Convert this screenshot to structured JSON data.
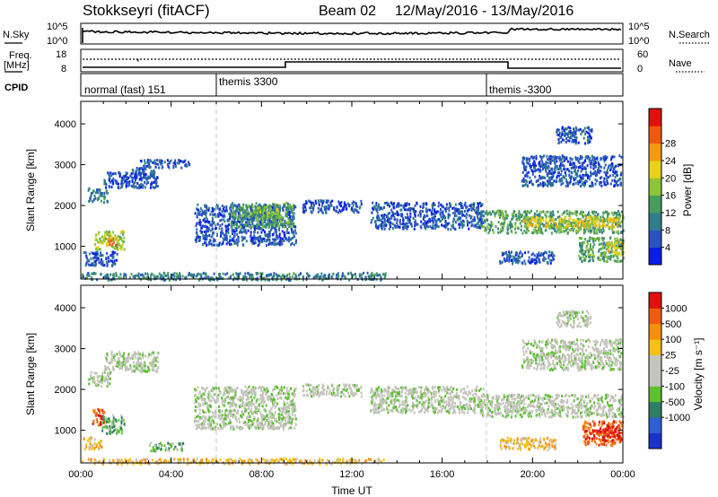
{
  "header": {
    "title": "Stokkseyri (fitACF)",
    "beam_label": "Beam 02",
    "date_range": "12/May/2016 - 13/May/2016"
  },
  "summary_panels": {
    "nsky": {
      "label": "N.Sky",
      "tick_top": "10^5",
      "tick_bottom": "10^0"
    },
    "nsearch": {
      "label": "N.Search",
      "tick_top": "10^5",
      "tick_bottom": "10^0"
    },
    "freq": {
      "label_line1": "Freq.",
      "label_line2": "[MHz]",
      "tick_top": "18",
      "tick_bottom": "8"
    },
    "nave": {
      "label": "Nave",
      "tick_top": "60",
      "tick_bottom": "0"
    },
    "cpid": {
      "label": "CPID",
      "segments": [
        {
          "name": "normal (fast) 151",
          "start_hour": 0
        },
        {
          "name": "themis 3300",
          "start_hour": 6
        },
        {
          "name": "themis -3300",
          "start_hour": 18
        }
      ]
    }
  },
  "chart_data": [
    {
      "type": "heatmap",
      "panel": "power",
      "ylabel": "Slant Range [km]",
      "ylim": [
        200,
        4550
      ],
      "yticks": [
        1000,
        2000,
        3000,
        4000
      ],
      "xlim_hours": [
        0,
        24
      ],
      "colorbar": {
        "label": "Power [dB]",
        "ticks": [
          "4",
          "8",
          "12",
          "16",
          "20",
          "24",
          "28"
        ],
        "colors": [
          "#0a1fe6",
          "#2a55c0",
          "#2f7e8a",
          "#4a9c5c",
          "#8cc43a",
          "#e8d21a",
          "#f29a12",
          "#ef5a10",
          "#e0100e"
        ]
      },
      "regions": [
        {
          "x0": 0.3,
          "x1": 1.2,
          "y0": 2100,
          "y1": 2450,
          "level": 2
        },
        {
          "x0": 1.0,
          "x1": 3.4,
          "y0": 2450,
          "y1": 2850,
          "level": 1
        },
        {
          "x0": 2.2,
          "x1": 3.3,
          "y0": 2650,
          "y1": 2950,
          "level": 1
        },
        {
          "x0": 0.6,
          "x1": 1.9,
          "y0": 950,
          "y1": 1400,
          "level": 4
        },
        {
          "x0": 1.1,
          "x1": 1.6,
          "y0": 1050,
          "y1": 1250,
          "level": 6
        },
        {
          "x0": 0.1,
          "x1": 1.6,
          "y0": 550,
          "y1": 900,
          "level": 1
        },
        {
          "x0": 0.0,
          "x1": 13.5,
          "y0": 200,
          "y1": 380,
          "level": 2
        },
        {
          "x0": 5.0,
          "x1": 9.5,
          "y0": 1050,
          "y1": 2050,
          "level": 1
        },
        {
          "x0": 6.6,
          "x1": 9.4,
          "y0": 1500,
          "y1": 2100,
          "level": 3
        },
        {
          "x0": 7.7,
          "x1": 8.8,
          "y0": 1700,
          "y1": 2000,
          "level": 4
        },
        {
          "x0": 9.8,
          "x1": 12.4,
          "y0": 1850,
          "y1": 2150,
          "level": 1
        },
        {
          "x0": 12.8,
          "x1": 17.8,
          "y0": 1450,
          "y1": 2100,
          "level": 1
        },
        {
          "x0": 17.7,
          "x1": 24.0,
          "y0": 1350,
          "y1": 1900,
          "level": 3
        },
        {
          "x0": 19.5,
          "x1": 23.8,
          "y0": 1500,
          "y1": 1750,
          "level": 5
        },
        {
          "x0": 19.5,
          "x1": 23.9,
          "y0": 2500,
          "y1": 3250,
          "level": 1
        },
        {
          "x0": 21.0,
          "x1": 22.6,
          "y0": 3550,
          "y1": 3950,
          "level": 1
        },
        {
          "x0": 22.0,
          "x1": 24.0,
          "y0": 650,
          "y1": 1250,
          "level": 3
        },
        {
          "x0": 23.2,
          "x1": 24.0,
          "y0": 800,
          "y1": 1150,
          "level": 5
        },
        {
          "x0": 18.5,
          "x1": 21.0,
          "y0": 600,
          "y1": 900,
          "level": 1
        },
        {
          "x0": 2.6,
          "x1": 4.8,
          "y0": 2950,
          "y1": 3150,
          "level": 1
        }
      ]
    },
    {
      "type": "heatmap",
      "panel": "velocity",
      "ylabel": "Slant Range [km]",
      "ylim": [
        200,
        4550
      ],
      "yticks": [
        1000,
        2000,
        3000,
        4000
      ],
      "xlim_hours": [
        0,
        24
      ],
      "xlabel": "Time UT",
      "xticks": [
        "00:00",
        "04:00",
        "08:00",
        "12:00",
        "16:00",
        "20:00",
        "00:00"
      ],
      "colorbar": {
        "label": "Velocity [m s⁻¹]",
        "ticks": [
          "1000",
          "500",
          "100",
          "25",
          "-25",
          "-100",
          "-500",
          "-1000"
        ],
        "colors": [
          "#1a32c8",
          "#2f5fd0",
          "#2e7e66",
          "#5cc030",
          "#c4c4bc",
          "#c4c4bc",
          "#f7c018",
          "#f39010",
          "#ef5c10",
          "#e0100e"
        ]
      },
      "regions": [
        {
          "x0": 0.3,
          "x1": 1.3,
          "y0": 2100,
          "y1": 2450,
          "level": 4
        },
        {
          "x0": 1.0,
          "x1": 3.4,
          "y0": 2450,
          "y1": 2950,
          "level": 4
        },
        {
          "x0": 0.5,
          "x1": 1.0,
          "y0": 1150,
          "y1": 1550,
          "level": 8
        },
        {
          "x0": 0.9,
          "x1": 1.9,
          "y0": 950,
          "y1": 1400,
          "level": 3
        },
        {
          "x0": 0.1,
          "x1": 0.9,
          "y0": 550,
          "y1": 850,
          "level": 6
        },
        {
          "x0": 3.0,
          "x1": 4.5,
          "y0": 520,
          "y1": 720,
          "level": 3
        },
        {
          "x0": 0.0,
          "x1": 13.5,
          "y0": 200,
          "y1": 330,
          "level": 6
        },
        {
          "x0": 5.0,
          "x1": 9.5,
          "y0": 1050,
          "y1": 2100,
          "level": 4
        },
        {
          "x0": 9.8,
          "x1": 12.4,
          "y0": 1850,
          "y1": 2150,
          "level": 4
        },
        {
          "x0": 12.8,
          "x1": 17.8,
          "y0": 1450,
          "y1": 2100,
          "level": 4
        },
        {
          "x0": 17.7,
          "x1": 24.0,
          "y0": 1350,
          "y1": 1900,
          "level": 4
        },
        {
          "x0": 19.5,
          "x1": 23.9,
          "y0": 2500,
          "y1": 3250,
          "level": 4
        },
        {
          "x0": 21.0,
          "x1": 22.6,
          "y0": 3550,
          "y1": 3950,
          "level": 4
        },
        {
          "x0": 22.2,
          "x1": 24.0,
          "y0": 650,
          "y1": 1250,
          "level": 8
        },
        {
          "x0": 23.1,
          "x1": 23.9,
          "y0": 750,
          "y1": 1150,
          "level": 9
        },
        {
          "x0": 18.5,
          "x1": 21.0,
          "y0": 550,
          "y1": 850,
          "level": 6
        }
      ]
    }
  ]
}
